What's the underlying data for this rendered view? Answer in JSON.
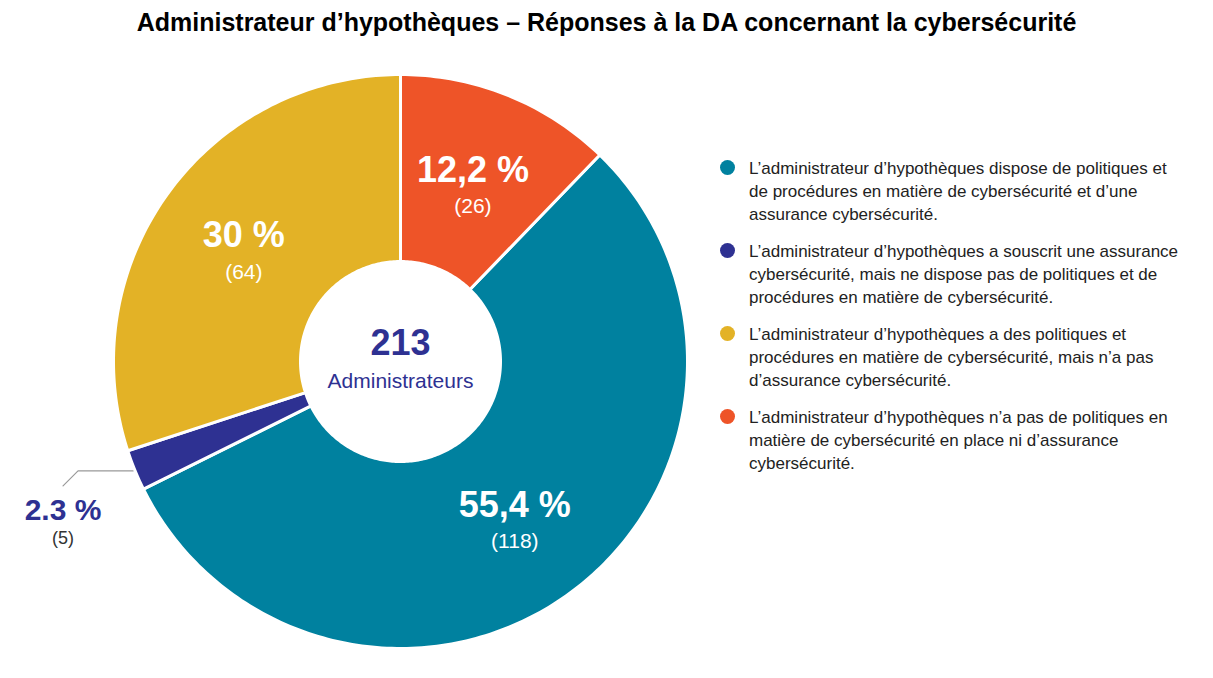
{
  "chart_data": {
    "type": "donut",
    "title": "Administrateur d’hypothèques – Réponses à la DA concernant la cybersécurité",
    "categories": [
      "L’administrateur d’hypothèques dispose de politiques et de procédures en matière de cybersécurité et d’une assurance cybersécurité.",
      "L’administrateur d’hypothèques a souscrit une assurance cybersécurité, mais ne dispose pas de politiques et de procédures en matière de cybersécurité.",
      "L’administrateur d’hypothèques a des politiques et procédures en matière de cybersécurité, mais n’a pas d’assurance cybersécurité.",
      "L’administrateur d’hypothèques n’a pas de politiques en matière de cybersécurité en place ni d’assurance cybersécurité."
    ],
    "values": [
      55.4,
      2.3,
      30,
      12.2
    ],
    "value_labels": [
      "55,4 %",
      "2.3 %",
      "30 %",
      "12,2 %"
    ],
    "count_labels": [
      "(118)",
      "(5)",
      "(64)",
      "(26)"
    ],
    "colors": [
      "#00819F",
      "#2E3192",
      "#E3B226",
      "#EE5428"
    ],
    "total": 213,
    "total_label": "Administrateurs",
    "data_labels": true,
    "legend": "right"
  }
}
